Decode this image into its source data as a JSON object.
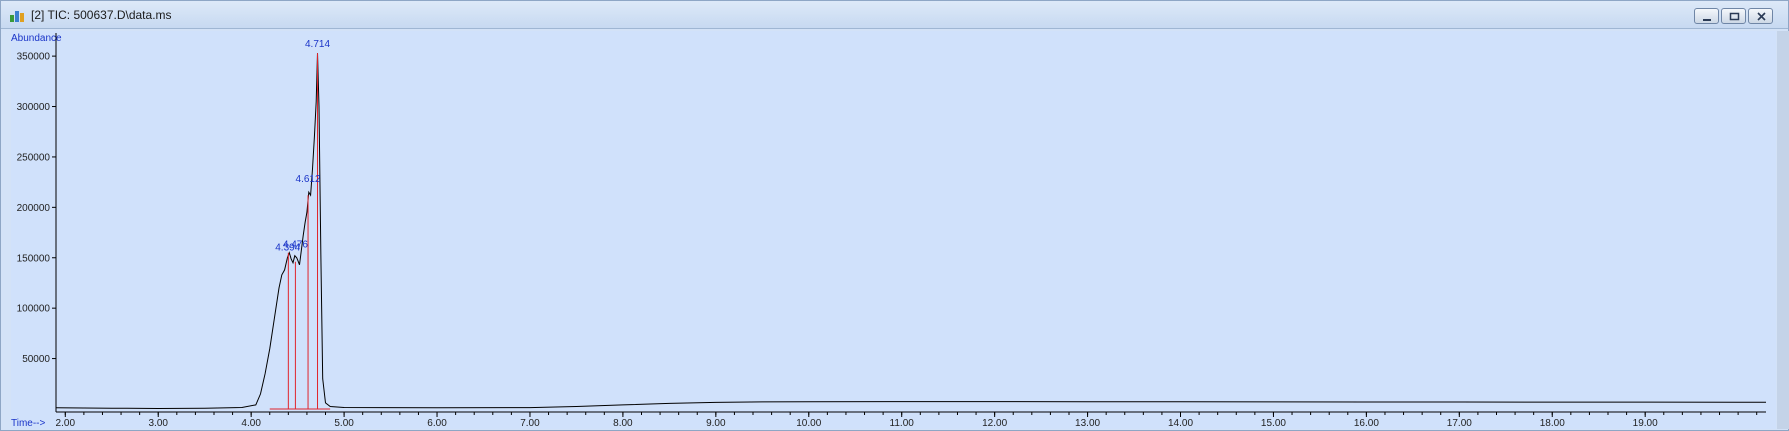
{
  "window": {
    "title": "[2] TIC: 500637.D\\data.ms"
  },
  "chart_data": {
    "type": "line",
    "ylabel": "Abundance",
    "xlabel": "Time-->",
    "xlim": [
      1.9,
      20.3
    ],
    "ylim": [
      -3000,
      365000
    ],
    "x_ticks": [
      2.0,
      3.0,
      4.0,
      5.0,
      6.0,
      7.0,
      8.0,
      9.0,
      10.0,
      11.0,
      12.0,
      13.0,
      14.0,
      15.0,
      16.0,
      17.0,
      18.0,
      19.0
    ],
    "x_tick_labels": [
      "2.00",
      "3.00",
      "4.00",
      "5.00",
      "6.00",
      "7.00",
      "8.00",
      "9.00",
      "10.00",
      "11.00",
      "12.00",
      "13.00",
      "14.00",
      "15.00",
      "16.00",
      "17.00",
      "18.00",
      "19.00"
    ],
    "y_ticks": [
      50000,
      100000,
      150000,
      200000,
      250000,
      300000,
      350000
    ],
    "y_tick_labels": [
      "50000",
      "100000",
      "150000",
      "200000",
      "250000",
      "300000",
      "350000"
    ],
    "series": [
      {
        "color": "#000000",
        "x": [
          1.9,
          2.5,
          3.0,
          3.5,
          3.9,
          4.05,
          4.1,
          4.15,
          4.2,
          4.25,
          4.3,
          4.33,
          4.36,
          4.39,
          4.41,
          4.43,
          4.45,
          4.47,
          4.49,
          4.5,
          4.52,
          4.54,
          4.56,
          4.58,
          4.6,
          4.62,
          4.64,
          4.66,
          4.68,
          4.7,
          4.714,
          4.73,
          4.75,
          4.77,
          4.8,
          4.85,
          5.0,
          6.0,
          7.0,
          7.5,
          8.0,
          8.5,
          9.0,
          9.5,
          10.0,
          11.0,
          12.0,
          13.0,
          14.0,
          15.0,
          16.0,
          17.0,
          18.0,
          19.0,
          20.0,
          20.3
        ],
        "y": [
          1200,
          800,
          500,
          700,
          1500,
          4000,
          15000,
          35000,
          60000,
          90000,
          120000,
          133000,
          138000,
          150000,
          155000,
          149000,
          145000,
          152000,
          150000,
          148000,
          143000,
          157000,
          172000,
          185000,
          195000,
          215000,
          212000,
          238000,
          270000,
          305000,
          353000,
          300000,
          150000,
          30000,
          6000,
          2500,
          1500,
          1200,
          1400,
          2500,
          4000,
          5500,
          6500,
          7000,
          7200,
          7300,
          7300,
          7200,
          7100,
          7000,
          6900,
          6900,
          6800,
          6800,
          6700,
          6700
        ]
      }
    ],
    "integration_markers": [
      {
        "x": 4.4,
        "y": 155000
      },
      {
        "x": 4.476,
        "y": 146000
      },
      {
        "x": 4.612,
        "y": 212000
      },
      {
        "x": 4.714,
        "y": 353000
      }
    ],
    "peak_labels": [
      {
        "x": 4.394,
        "y": 155000,
        "text": "4.394"
      },
      {
        "x": 4.476,
        "y": 158000,
        "text": "4.476"
      },
      {
        "x": 4.612,
        "y": 223000,
        "text": "4.612"
      },
      {
        "x": 4.714,
        "y": 357000,
        "text": "4.714"
      }
    ],
    "colors": {
      "background": "#d0e1fb",
      "trace": "#000000",
      "integration": "#e0242b",
      "labels": "#1a34c8"
    }
  }
}
